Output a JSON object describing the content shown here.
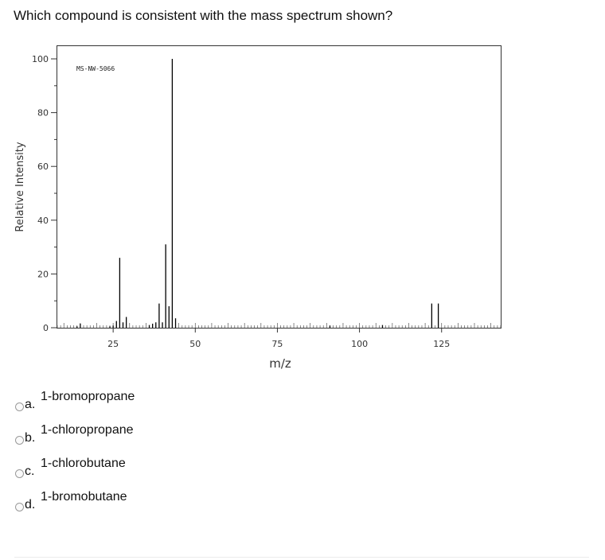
{
  "question": "Which compound is consistent with the mass spectrum shown?",
  "chart_data": {
    "type": "bar",
    "title": "MS-NW-5066",
    "xlabel": "m/z",
    "ylabel": "Relative Intensity",
    "xlim": [
      8,
      143
    ],
    "ylim": [
      0,
      100
    ],
    "xticks": [
      25,
      50,
      75,
      100,
      125
    ],
    "yticks": [
      0,
      20,
      40,
      60,
      80,
      100
    ],
    "grid": false,
    "x": [
      14,
      15,
      24,
      25,
      26,
      27,
      28,
      29,
      36,
      37,
      38,
      39,
      40,
      41,
      42,
      43,
      44,
      91,
      107,
      122,
      124
    ],
    "values": [
      0.5,
      1.5,
      0.5,
      0.8,
      2.5,
      26,
      2,
      4,
      1,
      1.5,
      2,
      9,
      2,
      31,
      8,
      100,
      3.5,
      0.8,
      1,
      9,
      9
    ]
  },
  "options": [
    {
      "letter": "a.",
      "text": "1-bromopropane"
    },
    {
      "letter": "b.",
      "text": "1-chloropropane"
    },
    {
      "letter": "c.",
      "text": "1-chlorobutane"
    },
    {
      "letter": "d.",
      "text": "1-bromobutane"
    }
  ]
}
